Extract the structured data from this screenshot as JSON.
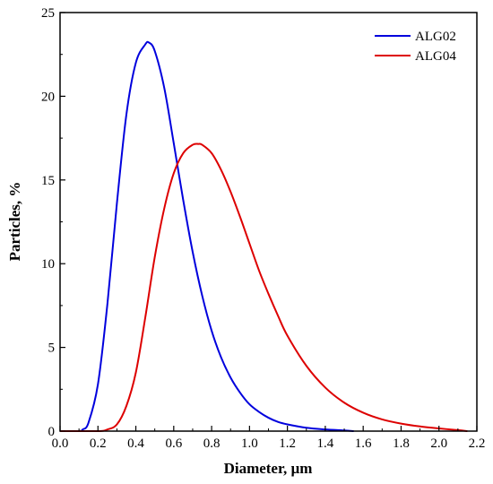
{
  "chart_data": {
    "type": "line",
    "xlabel": "Diameter, µm",
    "ylabel": "Particles, %",
    "xlim": [
      0.0,
      2.2
    ],
    "ylim": [
      0,
      25
    ],
    "x_ticks": [
      "0.0",
      "0.2",
      "0.4",
      "0.6",
      "0.8",
      "1.0",
      "1.2",
      "1.4",
      "1.6",
      "1.8",
      "2.0",
      "2.2"
    ],
    "y_ticks": [
      "0",
      "5",
      "10",
      "15",
      "20",
      "25"
    ],
    "grid": false,
    "legend_position": "top-right",
    "series": [
      {
        "name": "ALG02",
        "color": "#0000dd",
        "x": [
          0.0,
          0.1,
          0.12,
          0.15,
          0.2,
          0.25,
          0.3,
          0.35,
          0.4,
          0.45,
          0.47,
          0.5,
          0.55,
          0.6,
          0.65,
          0.7,
          0.75,
          0.8,
          0.85,
          0.9,
          0.95,
          1.0,
          1.05,
          1.1,
          1.15,
          1.2,
          1.3,
          1.4,
          1.5,
          1.55
        ],
        "y": [
          0.0,
          0.0,
          0.1,
          0.5,
          2.8,
          7.6,
          13.6,
          18.9,
          22.0,
          23.1,
          23.2,
          22.7,
          20.5,
          17.2,
          13.8,
          10.7,
          8.1,
          6.0,
          4.4,
          3.2,
          2.3,
          1.6,
          1.15,
          0.8,
          0.55,
          0.4,
          0.2,
          0.1,
          0.04,
          0.0
        ]
      },
      {
        "name": "ALG04",
        "color": "#dd0000",
        "x": [
          0.0,
          0.2,
          0.25,
          0.3,
          0.35,
          0.4,
          0.45,
          0.5,
          0.55,
          0.6,
          0.65,
          0.7,
          0.73,
          0.75,
          0.8,
          0.85,
          0.9,
          0.95,
          1.0,
          1.05,
          1.1,
          1.15,
          1.2,
          1.3,
          1.4,
          1.5,
          1.6,
          1.7,
          1.8,
          1.9,
          2.0,
          2.1,
          2.15
        ],
        "y": [
          0.0,
          0.0,
          0.1,
          0.4,
          1.5,
          3.5,
          6.8,
          10.4,
          13.3,
          15.4,
          16.6,
          17.1,
          17.15,
          17.1,
          16.6,
          15.6,
          14.3,
          12.8,
          11.2,
          9.6,
          8.2,
          6.9,
          5.7,
          3.9,
          2.6,
          1.7,
          1.1,
          0.7,
          0.45,
          0.28,
          0.16,
          0.06,
          0.0
        ]
      }
    ]
  }
}
